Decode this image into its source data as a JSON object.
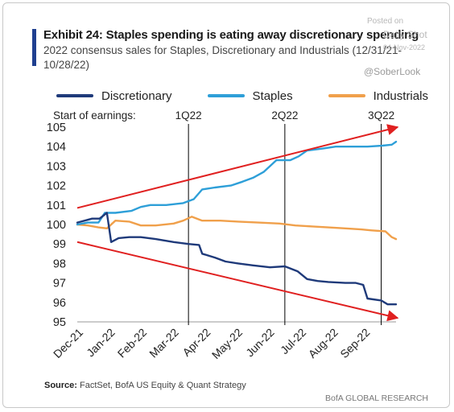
{
  "exhibit": {
    "title": "Exhibit 24: Staples spending is eating away discretionary spending",
    "subtitle": "2022 consensus sales for Staples, Discretionary and Industrials (12/31/21-10/28/22)"
  },
  "watermark": {
    "posted": "Posted on",
    "brand": "Daily Shot",
    "date": "04-Nov-2022",
    "handle": "@SoberLook"
  },
  "colors": {
    "discretionary": "#1f3a7a",
    "staples": "#2e9fd8",
    "industrials": "#f0a04b",
    "arrow": "#e02020",
    "marker": "#000000"
  },
  "chart_data": {
    "type": "line",
    "x_tick_labels": [
      "Dec-21",
      "Jan-22",
      "Feb-22",
      "Mar-22",
      "Apr-22",
      "May-22",
      "Jun-22",
      "Jul-22",
      "Aug-22",
      "Sep-22"
    ],
    "x_range": [
      "2021-12-31",
      "2022-10-28"
    ],
    "ylim": [
      95,
      105
    ],
    "yticks": [
      95,
      96,
      97,
      98,
      99,
      100,
      101,
      102,
      103,
      104,
      105
    ],
    "earnings_label": "Start of earnings:",
    "earnings_markers": [
      {
        "label": "1Q22",
        "date": "2022-04-15"
      },
      {
        "label": "2Q22",
        "date": "2022-07-15"
      },
      {
        "label": "3Q22",
        "date": "2022-10-14"
      }
    ],
    "series": [
      {
        "name": "Discretionary",
        "color": "#1f3a7a",
        "points": [
          [
            "2021-12-31",
            100.1
          ],
          [
            "2022-01-07",
            100.2
          ],
          [
            "2022-01-14",
            100.3
          ],
          [
            "2022-01-21",
            100.3
          ],
          [
            "2022-01-28",
            100.6
          ],
          [
            "2022-02-01",
            99.1
          ],
          [
            "2022-02-08",
            99.3
          ],
          [
            "2022-02-18",
            99.35
          ],
          [
            "2022-03-01",
            99.35
          ],
          [
            "2022-03-15",
            99.25
          ],
          [
            "2022-04-01",
            99.1
          ],
          [
            "2022-04-15",
            99.0
          ],
          [
            "2022-04-25",
            98.95
          ],
          [
            "2022-04-28",
            98.5
          ],
          [
            "2022-05-10",
            98.3
          ],
          [
            "2022-05-20",
            98.1
          ],
          [
            "2022-06-01",
            98.0
          ],
          [
            "2022-06-15",
            97.9
          ],
          [
            "2022-07-01",
            97.8
          ],
          [
            "2022-07-15",
            97.85
          ],
          [
            "2022-07-27",
            97.6
          ],
          [
            "2022-08-05",
            97.2
          ],
          [
            "2022-08-15",
            97.1
          ],
          [
            "2022-08-25",
            97.05
          ],
          [
            "2022-09-10",
            97.0
          ],
          [
            "2022-09-20",
            97.0
          ],
          [
            "2022-09-27",
            96.9
          ],
          [
            "2022-10-01",
            96.2
          ],
          [
            "2022-10-14",
            96.1
          ],
          [
            "2022-10-20",
            95.9
          ],
          [
            "2022-10-28",
            95.9
          ]
        ]
      },
      {
        "name": "Staples",
        "color": "#2e9fd8",
        "points": [
          [
            "2021-12-31",
            100.0
          ],
          [
            "2022-01-10",
            100.1
          ],
          [
            "2022-01-20",
            100.1
          ],
          [
            "2022-01-26",
            100.6
          ],
          [
            "2022-02-05",
            100.6
          ],
          [
            "2022-02-20",
            100.7
          ],
          [
            "2022-03-01",
            100.9
          ],
          [
            "2022-03-10",
            101.0
          ],
          [
            "2022-03-25",
            101.0
          ],
          [
            "2022-04-10",
            101.1
          ],
          [
            "2022-04-20",
            101.3
          ],
          [
            "2022-04-28",
            101.8
          ],
          [
            "2022-05-10",
            101.9
          ],
          [
            "2022-05-25",
            102.0
          ],
          [
            "2022-06-05",
            102.2
          ],
          [
            "2022-06-15",
            102.4
          ],
          [
            "2022-06-25",
            102.7
          ],
          [
            "2022-07-07",
            103.3
          ],
          [
            "2022-07-20",
            103.3
          ],
          [
            "2022-07-28",
            103.5
          ],
          [
            "2022-08-05",
            103.8
          ],
          [
            "2022-08-20",
            103.9
          ],
          [
            "2022-09-01",
            104.0
          ],
          [
            "2022-09-15",
            104.0
          ],
          [
            "2022-10-01",
            104.0
          ],
          [
            "2022-10-15",
            104.05
          ],
          [
            "2022-10-24",
            104.1
          ],
          [
            "2022-10-28",
            104.25
          ]
        ]
      },
      {
        "name": "Industrials",
        "color": "#f0a04b",
        "points": [
          [
            "2021-12-31",
            100.0
          ],
          [
            "2022-01-10",
            99.95
          ],
          [
            "2022-01-20",
            99.85
          ],
          [
            "2022-01-28",
            99.8
          ],
          [
            "2022-02-05",
            100.2
          ],
          [
            "2022-02-18",
            100.15
          ],
          [
            "2022-03-01",
            99.95
          ],
          [
            "2022-03-15",
            99.95
          ],
          [
            "2022-04-01",
            100.05
          ],
          [
            "2022-04-10",
            100.2
          ],
          [
            "2022-04-18",
            100.4
          ],
          [
            "2022-04-28",
            100.2
          ],
          [
            "2022-05-15",
            100.2
          ],
          [
            "2022-06-01",
            100.15
          ],
          [
            "2022-06-20",
            100.1
          ],
          [
            "2022-07-10",
            100.05
          ],
          [
            "2022-07-25",
            99.95
          ],
          [
            "2022-08-10",
            99.9
          ],
          [
            "2022-08-25",
            99.85
          ],
          [
            "2022-09-10",
            99.8
          ],
          [
            "2022-09-25",
            99.75
          ],
          [
            "2022-10-05",
            99.7
          ],
          [
            "2022-10-18",
            99.65
          ],
          [
            "2022-10-24",
            99.35
          ],
          [
            "2022-10-28",
            99.25
          ]
        ]
      }
    ],
    "arrows": [
      {
        "from": [
          "2021-12-31",
          100.85
        ],
        "to": [
          "2022-10-28",
          105.0
        ]
      },
      {
        "from": [
          "2021-12-31",
          99.1
        ],
        "to": [
          "2022-10-28",
          95.2
        ]
      }
    ]
  },
  "footer": {
    "source_label": "Source:",
    "source_text": "FactSet, BofA US Equity & Quant Strategy",
    "credit": "BofA GLOBAL RESEARCH"
  }
}
